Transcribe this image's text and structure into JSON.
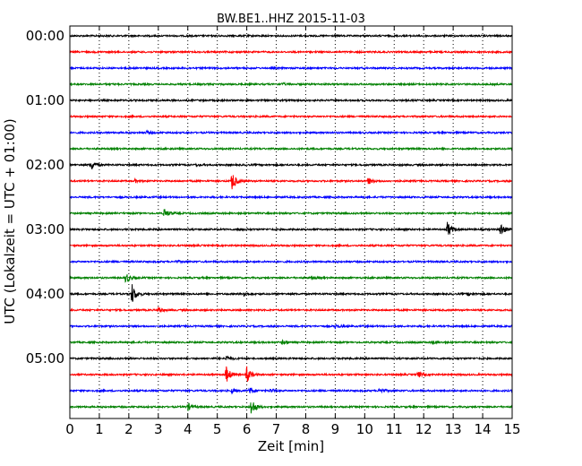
{
  "chart_data": {
    "type": "line",
    "title": "BW.BE1..HHZ 2015-11-03",
    "xlabel": "Zeit  [min]",
    "ylabel": "UTC (Lokalzeit = UTC + 01:00)",
    "xlim": [
      0,
      15
    ],
    "x_ticks": [
      0,
      1,
      2,
      3,
      4,
      5,
      6,
      7,
      8,
      9,
      10,
      11,
      12,
      13,
      14,
      15
    ],
    "x_tick_labels": [
      "0",
      "1",
      "2",
      "3",
      "4",
      "5",
      "6",
      "7",
      "8",
      "9",
      "10",
      "11",
      "12",
      "13",
      "14",
      "15"
    ],
    "y_tick_labels": [
      "00:00",
      "01:00",
      "02:00",
      "03:00",
      "04:00",
      "05:00"
    ],
    "grid": "vertical dotted",
    "row_interval_minutes": 15,
    "colors": [
      "#000000",
      "#ff0000",
      "#0000ff",
      "#008000"
    ],
    "rows": [
      {
        "start": "00:00",
        "events": []
      },
      {
        "start": "00:15",
        "events": []
      },
      {
        "start": "00:30",
        "events": []
      },
      {
        "start": "00:45",
        "events": [
          {
            "t": 7.2,
            "amp": 0.1
          }
        ]
      },
      {
        "start": "01:00",
        "events": []
      },
      {
        "start": "01:15",
        "events": []
      },
      {
        "start": "01:30",
        "events": [
          {
            "t": 2.6,
            "amp": 0.15
          }
        ]
      },
      {
        "start": "01:45",
        "events": []
      },
      {
        "start": "02:00",
        "events": [
          {
            "t": 0.7,
            "amp": 0.55
          },
          {
            "t": 4.3,
            "amp": 0.1
          }
        ]
      },
      {
        "start": "02:15",
        "events": [
          {
            "t": 2.2,
            "amp": 0.15
          },
          {
            "t": 5.5,
            "amp": 0.9
          },
          {
            "t": 10.1,
            "amp": 0.35
          }
        ]
      },
      {
        "start": "02:30",
        "events": []
      },
      {
        "start": "02:45",
        "events": [
          {
            "t": 3.2,
            "amp": 0.45
          }
        ]
      },
      {
        "start": "03:00",
        "events": [
          {
            "t": 5.7,
            "amp": 0.15
          },
          {
            "t": 12.8,
            "amp": 0.7
          },
          {
            "t": 14.6,
            "amp": 0.65
          }
        ]
      },
      {
        "start": "03:15",
        "events": []
      },
      {
        "start": "03:30",
        "events": [
          {
            "t": 3.6,
            "amp": 0.1
          }
        ]
      },
      {
        "start": "03:45",
        "events": [
          {
            "t": 1.9,
            "amp": 0.55
          },
          {
            "t": 8.2,
            "amp": 0.1
          }
        ]
      },
      {
        "start": "04:00",
        "events": [
          {
            "t": 2.1,
            "amp": 1.0
          },
          {
            "t": 5.9,
            "amp": 0.25
          },
          {
            "t": 13.5,
            "amp": 0.15
          }
        ]
      },
      {
        "start": "04:15",
        "events": [
          {
            "t": 3.0,
            "amp": 0.3
          }
        ]
      },
      {
        "start": "04:30",
        "events": [
          {
            "t": 9.0,
            "amp": 0.2
          }
        ]
      },
      {
        "start": "04:45",
        "events": [
          {
            "t": 7.2,
            "amp": 0.2
          },
          {
            "t": 12.3,
            "amp": 0.15
          }
        ]
      },
      {
        "start": "05:00",
        "events": [
          {
            "t": 5.3,
            "amp": 0.25
          }
        ]
      },
      {
        "start": "05:15",
        "events": [
          {
            "t": 5.3,
            "amp": 0.8
          },
          {
            "t": 6.0,
            "amp": 0.75
          },
          {
            "t": 11.8,
            "amp": 0.3
          }
        ]
      },
      {
        "start": "05:30",
        "events": [
          {
            "t": 5.5,
            "amp": 0.2
          },
          {
            "t": 6.1,
            "amp": 0.35
          },
          {
            "t": 6.8,
            "amp": 0.2
          },
          {
            "t": 10.5,
            "amp": 0.3
          }
        ]
      },
      {
        "start": "05:45",
        "events": [
          {
            "t": 4.0,
            "amp": 0.35
          },
          {
            "t": 6.15,
            "amp": 0.85
          }
        ]
      }
    ]
  }
}
